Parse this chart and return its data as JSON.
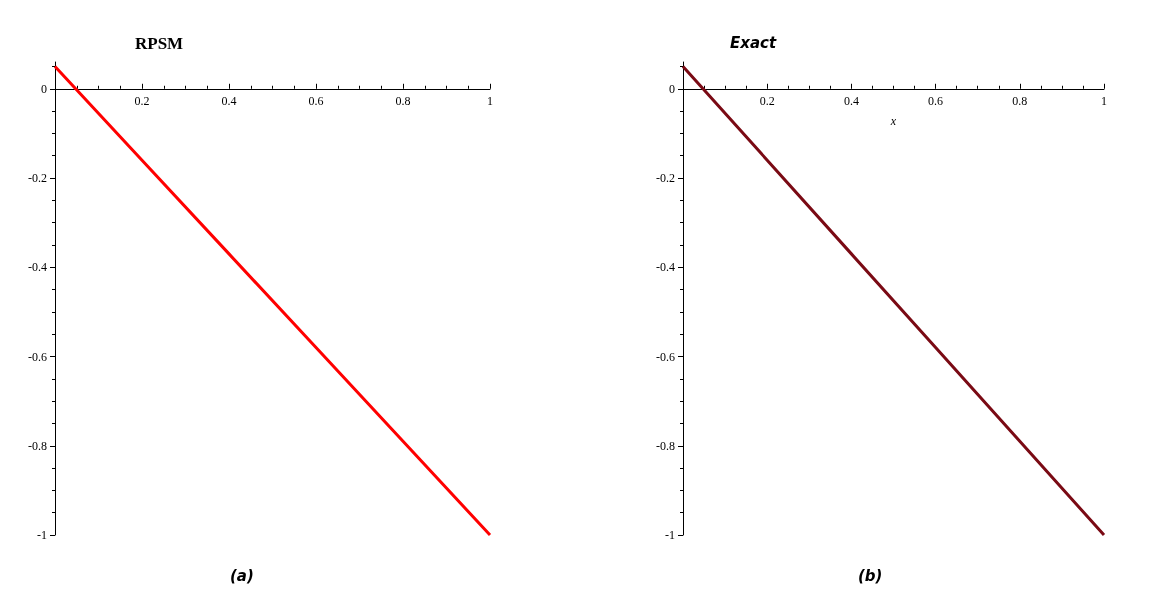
{
  "chart_data": [
    {
      "type": "line",
      "title": "RPSM",
      "x": [
        0,
        0.2,
        0.4,
        0.6,
        0.8,
        1
      ],
      "series": [
        {
          "color": "#ff0000",
          "values": [
            0.05,
            -0.16,
            -0.37,
            -0.58,
            -0.79,
            -1
          ]
        }
      ],
      "xlim": [
        0,
        1
      ],
      "xticks": [
        0.2,
        0.4,
        0.6,
        0.8,
        1
      ],
      "ylim": [
        -1,
        0.06
      ],
      "yticks": [
        -1,
        -0.8,
        -0.6,
        -0.4,
        -0.2,
        0
      ],
      "marker": "none",
      "line_style": "solid",
      "annotations": [
        "(a)"
      ]
    },
    {
      "type": "line",
      "title": "Exact",
      "xlabel": "x",
      "x": [
        0,
        0.2,
        0.4,
        0.6,
        0.8,
        1
      ],
      "series": [
        {
          "color": "#7a0a14",
          "values": [
            0.05,
            -0.16,
            -0.37,
            -0.58,
            -0.79,
            -1
          ]
        }
      ],
      "xlim": [
        0,
        1
      ],
      "xticks": [
        0.2,
        0.4,
        0.6,
        0.8,
        1
      ],
      "ylim": [
        -1,
        0.06
      ],
      "yticks": [
        -1,
        -0.8,
        -0.6,
        -0.4,
        -0.2,
        0
      ],
      "marker": "none",
      "line_style": "solid",
      "annotations": [
        "(b)"
      ]
    }
  ]
}
